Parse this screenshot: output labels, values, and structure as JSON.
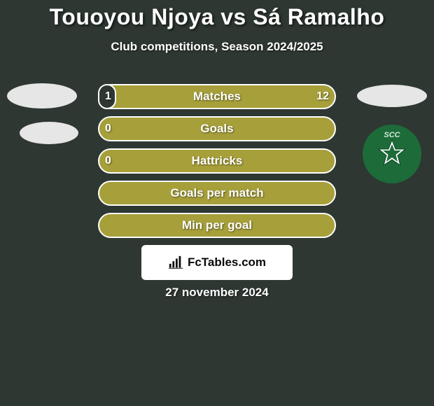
{
  "background_color": "#2e3732",
  "text_color": "#ffffff",
  "title": "Touoyou Njoya vs Sá Ramalho",
  "subtitle": "Club competitions, Season 2024/2025",
  "date": "27 november 2024",
  "footer_brand": "FcTables.com",
  "footer_card_color": "#ffffff",
  "footer_text_color": "#0a0a0a",
  "avatar_left_color": "#e6e6e6",
  "avatar_right_color": "#e6e6e6",
  "badge_bg": "#1e6b3a",
  "badge_label": "SCC",
  "badge_label_color": "#cfe8d6",
  "bar_track_color": "#a7a03a",
  "bar_track_border": "#ffffff",
  "bar_fill_color": "#2e3732",
  "bars": [
    {
      "label": "Matches",
      "left": "1",
      "right": "12",
      "left_frac": 0.077,
      "right_frac": 0.923
    },
    {
      "label": "Goals",
      "left": "0",
      "right": "",
      "left_frac": 0.0,
      "right_frac": 0.0
    },
    {
      "label": "Hattricks",
      "left": "0",
      "right": "",
      "left_frac": 0.0,
      "right_frac": 0.0
    },
    {
      "label": "Goals per match",
      "left": "",
      "right": "",
      "left_frac": 0.0,
      "right_frac": 0.0
    },
    {
      "label": "Min per goal",
      "left": "",
      "right": "",
      "left_frac": 0.0,
      "right_frac": 0.0
    }
  ]
}
